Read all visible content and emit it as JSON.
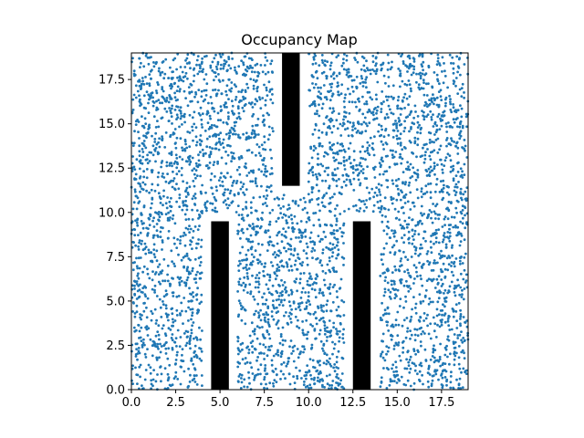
{
  "chart_data": {
    "type": "scatter",
    "title": "Occupancy Map",
    "xlabel": "",
    "ylabel": "",
    "xlim": [
      0,
      19
    ],
    "ylim": [
      0,
      19
    ],
    "xticks": [
      0.0,
      2.5,
      5.0,
      7.5,
      10.0,
      12.5,
      15.0,
      17.5
    ],
    "xtick_labels": [
      "0.0",
      "2.5",
      "5.0",
      "7.5",
      "10.0",
      "12.5",
      "15.0",
      "17.5"
    ],
    "yticks": [
      0.0,
      2.5,
      5.0,
      7.5,
      10.0,
      12.5,
      15.0,
      17.5
    ],
    "ytick_labels": [
      "0.0",
      "2.5",
      "5.0",
      "7.5",
      "10.0",
      "12.5",
      "15.0",
      "17.5"
    ],
    "grid": false,
    "legend": "none",
    "point_color": "#1f77b4",
    "obstacle_color": "#000000",
    "obstacles": [
      {
        "x": [
          4.5,
          5.5
        ],
        "y": [
          0.0,
          9.5
        ]
      },
      {
        "x": [
          12.5,
          13.5
        ],
        "y": [
          0.0,
          9.5
        ]
      },
      {
        "x": [
          8.5,
          9.5
        ],
        "y": [
          11.5,
          19.0
        ]
      }
    ],
    "inflation": 0.5,
    "num_points": 4200
  }
}
